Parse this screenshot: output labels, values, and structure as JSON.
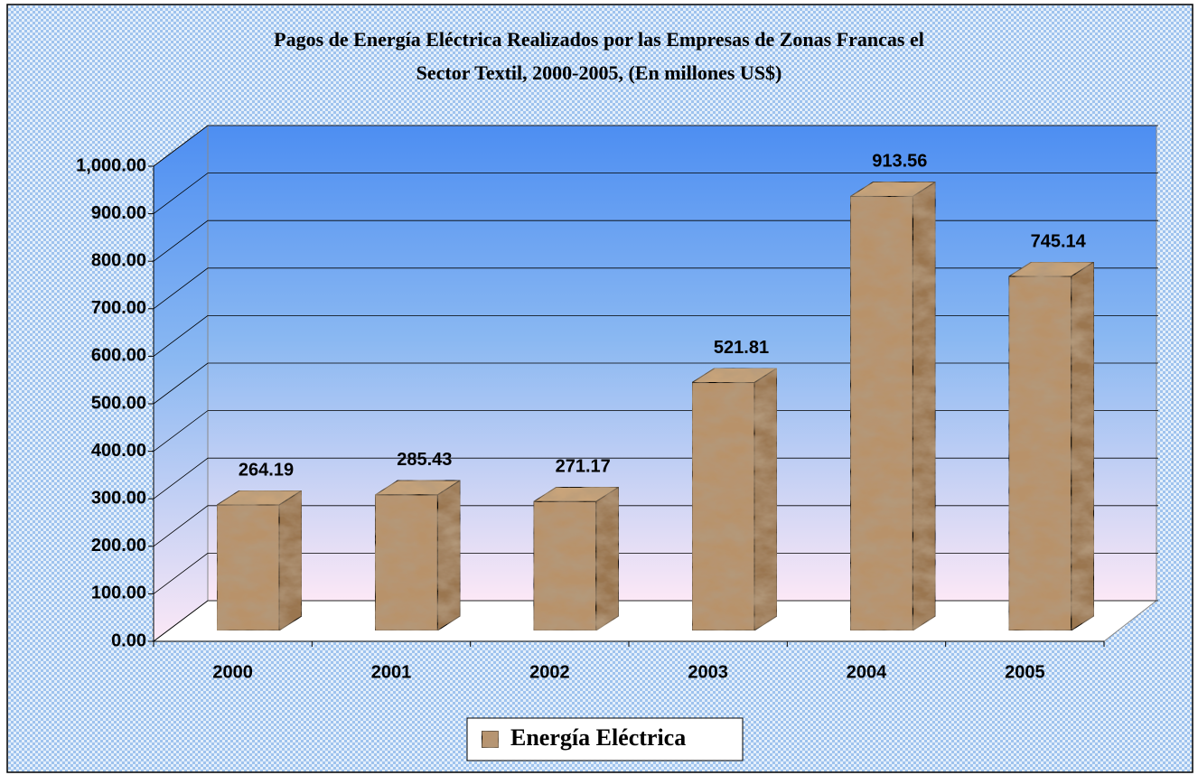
{
  "chart_data": {
    "type": "bar3d",
    "title": [
      "Pagos de Energía Eléctrica Realizados por las Empresas de Zonas Francas el",
      "Sector Textil, 2000-2005, (En millones US$)"
    ],
    "categories": [
      "2000",
      "2001",
      "2002",
      "2003",
      "2004",
      "2005"
    ],
    "series": [
      {
        "name": "Energía Eléctrica",
        "color": "#b8926a",
        "values": [
          264.19,
          285.43,
          271.17,
          521.81,
          913.56,
          745.14
        ]
      }
    ],
    "ylim": [
      0,
      1000
    ],
    "yticks": [
      {
        "value": 0,
        "label": "0.00"
      },
      {
        "value": 100,
        "label": "100.00"
      },
      {
        "value": 200,
        "label": "200.00"
      },
      {
        "value": 300,
        "label": "300.00"
      },
      {
        "value": 400,
        "label": "400.00"
      },
      {
        "value": 500,
        "label": "500.00"
      },
      {
        "value": 600,
        "label": "600.00"
      },
      {
        "value": 700,
        "label": "700.00"
      },
      {
        "value": 800,
        "label": "800.00"
      },
      {
        "value": 900,
        "label": "900.00"
      },
      {
        "value": 1000,
        "label": "1,000.00"
      }
    ],
    "grid": true,
    "legend": "bottom"
  }
}
